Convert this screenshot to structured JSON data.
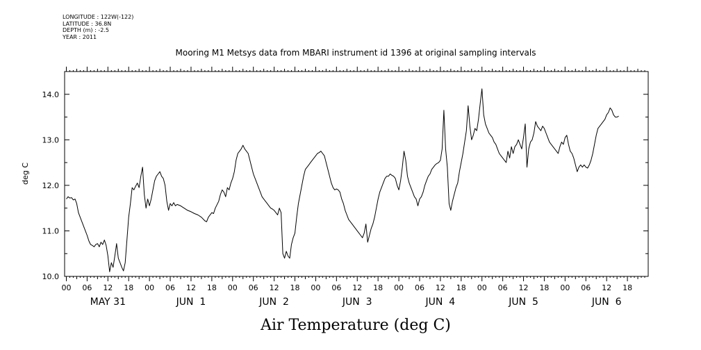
{
  "meta": {
    "longitude": "LONGITUDE : 122W(-122)",
    "latitude": "LATITUDE : 36.8N",
    "depth": "DEPTH (m) : -2.5",
    "year": "YEAR : 2011"
  },
  "chart_data": {
    "type": "line",
    "title": "Mooring M1 Metsys data from MBARI instrument id 1396 at original sampling intervals",
    "xlabel": "Air Temperature (deg C)",
    "ylabel": "deg C",
    "ylim": [
      10.0,
      14.5
    ],
    "yticks": [
      10.0,
      11.0,
      12.0,
      13.0,
      14.0
    ],
    "ytick_labels": [
      "10.0",
      "11.0",
      "12.0",
      "13.0",
      "14.0"
    ],
    "x_unit": "hours from 2011-05-31 00:00",
    "xlim": [
      -0.5,
      168
    ],
    "hour_ticks": [
      "00",
      "06",
      "12",
      "18",
      "00",
      "06",
      "12",
      "18",
      "00",
      "06",
      "12",
      "18",
      "00",
      "06",
      "12",
      "18",
      "00",
      "06",
      "12",
      "18",
      "00",
      "06",
      "12",
      "18",
      "00",
      "06",
      "12",
      "18"
    ],
    "day_labels": [
      "MAY 31",
      "JUN  1",
      "JUN  2",
      "JUN  3",
      "JUN  4",
      "JUN  5",
      "JUN  6"
    ],
    "grid": false,
    "series": [
      {
        "color": "#000000",
        "points": [
          [
            0,
            11.7
          ],
          [
            0.5,
            11.75
          ],
          [
            1,
            11.72
          ],
          [
            1.5,
            11.73
          ],
          [
            2,
            11.68
          ],
          [
            2.5,
            11.7
          ],
          [
            3,
            11.6
          ],
          [
            3.5,
            11.4
          ],
          [
            4,
            11.3
          ],
          [
            4.5,
            11.2
          ],
          [
            5,
            11.1
          ],
          [
            5.5,
            11.0
          ],
          [
            6,
            10.9
          ],
          [
            6.5,
            10.78
          ],
          [
            7,
            10.7
          ],
          [
            7.5,
            10.68
          ],
          [
            8,
            10.65
          ],
          [
            8.5,
            10.7
          ],
          [
            9,
            10.72
          ],
          [
            9.5,
            10.65
          ],
          [
            10,
            10.75
          ],
          [
            10.5,
            10.7
          ],
          [
            11,
            10.8
          ],
          [
            11.5,
            10.68
          ],
          [
            12,
            10.45
          ],
          [
            12.5,
            10.1
          ],
          [
            13,
            10.3
          ],
          [
            13.5,
            10.2
          ],
          [
            14,
            10.45
          ],
          [
            14.5,
            10.72
          ],
          [
            15,
            10.4
          ],
          [
            15.5,
            10.3
          ],
          [
            16,
            10.2
          ],
          [
            16.5,
            10.12
          ],
          [
            17,
            10.3
          ],
          [
            17.5,
            10.8
          ],
          [
            18,
            11.3
          ],
          [
            18.5,
            11.6
          ],
          [
            19,
            11.95
          ],
          [
            19.5,
            11.9
          ],
          [
            20,
            11.98
          ],
          [
            20.5,
            12.05
          ],
          [
            21,
            11.95
          ],
          [
            21.5,
            12.2
          ],
          [
            22,
            12.4
          ],
          [
            22.5,
            11.8
          ],
          [
            23,
            11.5
          ],
          [
            23.5,
            11.7
          ],
          [
            24,
            11.55
          ],
          [
            24.5,
            11.7
          ],
          [
            25,
            11.9
          ],
          [
            25.5,
            12.1
          ],
          [
            26,
            12.2
          ],
          [
            26.5,
            12.25
          ],
          [
            27,
            12.3
          ],
          [
            27.5,
            12.2
          ],
          [
            28,
            12.15
          ],
          [
            28.5,
            12.0
          ],
          [
            29,
            11.65
          ],
          [
            29.5,
            11.45
          ],
          [
            30,
            11.6
          ],
          [
            30.5,
            11.55
          ],
          [
            31,
            11.62
          ],
          [
            31.5,
            11.55
          ],
          [
            32,
            11.58
          ],
          [
            33,
            11.55
          ],
          [
            34,
            11.5
          ],
          [
            35,
            11.45
          ],
          [
            36,
            11.42
          ],
          [
            37,
            11.38
          ],
          [
            38,
            11.35
          ],
          [
            39,
            11.3
          ],
          [
            40,
            11.22
          ],
          [
            40.5,
            11.2
          ],
          [
            41,
            11.3
          ],
          [
            42,
            11.4
          ],
          [
            42.5,
            11.38
          ],
          [
            43,
            11.5
          ],
          [
            44,
            11.65
          ],
          [
            44.5,
            11.8
          ],
          [
            45,
            11.9
          ],
          [
            45.5,
            11.85
          ],
          [
            46,
            11.75
          ],
          [
            46.5,
            11.95
          ],
          [
            47,
            11.9
          ],
          [
            47.5,
            12.05
          ],
          [
            48,
            12.15
          ],
          [
            48.5,
            12.3
          ],
          [
            49,
            12.55
          ],
          [
            49.5,
            12.7
          ],
          [
            50,
            12.75
          ],
          [
            50.5,
            12.8
          ],
          [
            51,
            12.88
          ],
          [
            51.5,
            12.8
          ],
          [
            52,
            12.75
          ],
          [
            52.5,
            12.7
          ],
          [
            53,
            12.55
          ],
          [
            53.5,
            12.4
          ],
          [
            54,
            12.25
          ],
          [
            54.5,
            12.15
          ],
          [
            55,
            12.05
          ],
          [
            55.5,
            11.95
          ],
          [
            56,
            11.85
          ],
          [
            56.5,
            11.75
          ],
          [
            57,
            11.7
          ],
          [
            57.5,
            11.65
          ],
          [
            58,
            11.6
          ],
          [
            58.5,
            11.55
          ],
          [
            59,
            11.5
          ],
          [
            59.5,
            11.48
          ],
          [
            60,
            11.45
          ],
          [
            60.5,
            11.4
          ],
          [
            61,
            11.35
          ],
          [
            61.5,
            11.5
          ],
          [
            62,
            11.4
          ],
          [
            62.5,
            10.5
          ],
          [
            63,
            10.4
          ],
          [
            63.5,
            10.55
          ],
          [
            64,
            10.45
          ],
          [
            64.5,
            10.4
          ],
          [
            65,
            10.7
          ],
          [
            65.5,
            10.85
          ],
          [
            66,
            10.95
          ],
          [
            66.5,
            11.3
          ],
          [
            67,
            11.6
          ],
          [
            67.5,
            11.8
          ],
          [
            68,
            12.0
          ],
          [
            68.5,
            12.2
          ],
          [
            69,
            12.35
          ],
          [
            69.5,
            12.4
          ],
          [
            70,
            12.45
          ],
          [
            70.5,
            12.5
          ],
          [
            71,
            12.55
          ],
          [
            71.5,
            12.6
          ],
          [
            72,
            12.65
          ],
          [
            72.5,
            12.7
          ],
          [
            73,
            12.72
          ],
          [
            73.5,
            12.75
          ],
          [
            74,
            12.7
          ],
          [
            74.5,
            12.65
          ],
          [
            75,
            12.5
          ],
          [
            75.5,
            12.35
          ],
          [
            76,
            12.2
          ],
          [
            76.5,
            12.05
          ],
          [
            77,
            11.95
          ],
          [
            77.5,
            11.9
          ],
          [
            78,
            11.92
          ],
          [
            78.5,
            11.9
          ],
          [
            79,
            11.85
          ],
          [
            79.5,
            11.7
          ],
          [
            80,
            11.6
          ],
          [
            80.5,
            11.45
          ],
          [
            81,
            11.35
          ],
          [
            81.5,
            11.25
          ],
          [
            82,
            11.2
          ],
          [
            82.5,
            11.15
          ],
          [
            83,
            11.1
          ],
          [
            83.5,
            11.05
          ],
          [
            84,
            11.0
          ],
          [
            84.5,
            10.95
          ],
          [
            85,
            10.9
          ],
          [
            85.5,
            10.85
          ],
          [
            86,
            10.95
          ],
          [
            86.5,
            11.15
          ],
          [
            87,
            10.75
          ],
          [
            87.5,
            10.9
          ],
          [
            88,
            11.05
          ],
          [
            88.5,
            11.15
          ],
          [
            89,
            11.3
          ],
          [
            89.5,
            11.5
          ],
          [
            90,
            11.7
          ],
          [
            90.5,
            11.85
          ],
          [
            91,
            11.95
          ],
          [
            91.5,
            12.05
          ],
          [
            92,
            12.15
          ],
          [
            92.5,
            12.2
          ],
          [
            93,
            12.2
          ],
          [
            93.5,
            12.25
          ],
          [
            94,
            12.22
          ],
          [
            94.5,
            12.2
          ],
          [
            95,
            12.15
          ],
          [
            95.5,
            12.0
          ],
          [
            96,
            11.9
          ],
          [
            96.5,
            12.1
          ],
          [
            97,
            12.4
          ],
          [
            97.5,
            12.75
          ],
          [
            98,
            12.55
          ],
          [
            98.5,
            12.2
          ],
          [
            99,
            12.05
          ],
          [
            99.5,
            11.95
          ],
          [
            100,
            11.85
          ],
          [
            100.5,
            11.75
          ],
          [
            101,
            11.7
          ],
          [
            101.5,
            11.55
          ],
          [
            102,
            11.7
          ],
          [
            102.5,
            11.75
          ],
          [
            103,
            11.85
          ],
          [
            103.5,
            12.0
          ],
          [
            104,
            12.1
          ],
          [
            104.5,
            12.2
          ],
          [
            105,
            12.25
          ],
          [
            105.5,
            12.35
          ],
          [
            106,
            12.4
          ],
          [
            106.5,
            12.45
          ],
          [
            107,
            12.48
          ],
          [
            107.5,
            12.5
          ],
          [
            108,
            12.55
          ],
          [
            108.5,
            12.8
          ],
          [
            109,
            13.65
          ],
          [
            109.5,
            12.8
          ],
          [
            110,
            12.4
          ],
          [
            110.5,
            11.6
          ],
          [
            111,
            11.45
          ],
          [
            111.5,
            11.65
          ],
          [
            112,
            11.8
          ],
          [
            112.5,
            11.95
          ],
          [
            113,
            12.05
          ],
          [
            113.5,
            12.3
          ],
          [
            114,
            12.5
          ],
          [
            114.5,
            12.7
          ],
          [
            115,
            12.95
          ],
          [
            115.5,
            13.2
          ],
          [
            116,
            13.75
          ],
          [
            116.5,
            13.3
          ],
          [
            117,
            13.0
          ],
          [
            117.5,
            13.1
          ],
          [
            118,
            13.25
          ],
          [
            118.5,
            13.2
          ],
          [
            119,
            13.45
          ],
          [
            119.5,
            13.8
          ],
          [
            120,
            14.12
          ],
          [
            120.5,
            13.55
          ],
          [
            121,
            13.35
          ],
          [
            121.5,
            13.25
          ],
          [
            122,
            13.15
          ],
          [
            122.5,
            13.1
          ],
          [
            123,
            13.05
          ],
          [
            123.5,
            12.95
          ],
          [
            124,
            12.9
          ],
          [
            124.5,
            12.8
          ],
          [
            125,
            12.7
          ],
          [
            125.5,
            12.65
          ],
          [
            126,
            12.6
          ],
          [
            126.5,
            12.55
          ],
          [
            127,
            12.5
          ],
          [
            127.5,
            12.75
          ],
          [
            128,
            12.6
          ],
          [
            128.5,
            12.85
          ],
          [
            129,
            12.7
          ],
          [
            129.5,
            12.85
          ],
          [
            130,
            12.9
          ],
          [
            130.5,
            13.0
          ],
          [
            131,
            12.9
          ],
          [
            131.5,
            12.8
          ],
          [
            132,
            13.05
          ],
          [
            132.5,
            13.35
          ],
          [
            133,
            12.4
          ],
          [
            133.5,
            12.8
          ],
          [
            134,
            12.95
          ],
          [
            134.5,
            13.0
          ],
          [
            135,
            13.15
          ],
          [
            135.5,
            13.4
          ],
          [
            136,
            13.3
          ],
          [
            136.5,
            13.25
          ],
          [
            137,
            13.2
          ],
          [
            137.5,
            13.3
          ],
          [
            138,
            13.25
          ],
          [
            138.5,
            13.15
          ],
          [
            139,
            13.05
          ],
          [
            139.5,
            12.95
          ],
          [
            140,
            12.9
          ],
          [
            140.5,
            12.85
          ],
          [
            141,
            12.8
          ],
          [
            141.5,
            12.75
          ],
          [
            142,
            12.7
          ],
          [
            142.5,
            12.85
          ],
          [
            143,
            12.95
          ],
          [
            143.5,
            12.9
          ],
          [
            144,
            13.05
          ],
          [
            144.5,
            13.1
          ],
          [
            145,
            12.9
          ],
          [
            145.5,
            12.75
          ],
          [
            146,
            12.7
          ],
          [
            146.5,
            12.6
          ],
          [
            147,
            12.45
          ],
          [
            147.5,
            12.3
          ],
          [
            148,
            12.4
          ],
          [
            148.5,
            12.45
          ],
          [
            149,
            12.4
          ],
          [
            149.5,
            12.45
          ],
          [
            150,
            12.4
          ],
          [
            150.5,
            12.38
          ],
          [
            151,
            12.45
          ],
          [
            151.5,
            12.55
          ],
          [
            152,
            12.7
          ],
          [
            152.5,
            12.9
          ],
          [
            153,
            13.1
          ],
          [
            153.5,
            13.25
          ],
          [
            154,
            13.3
          ],
          [
            154.5,
            13.35
          ],
          [
            155,
            13.4
          ],
          [
            155.5,
            13.45
          ],
          [
            156,
            13.55
          ],
          [
            156.5,
            13.6
          ],
          [
            157,
            13.7
          ],
          [
            157.5,
            13.65
          ],
          [
            158,
            13.55
          ],
          [
            158.5,
            13.5
          ],
          [
            159,
            13.5
          ],
          [
            159.5,
            13.52
          ]
        ]
      }
    ]
  }
}
